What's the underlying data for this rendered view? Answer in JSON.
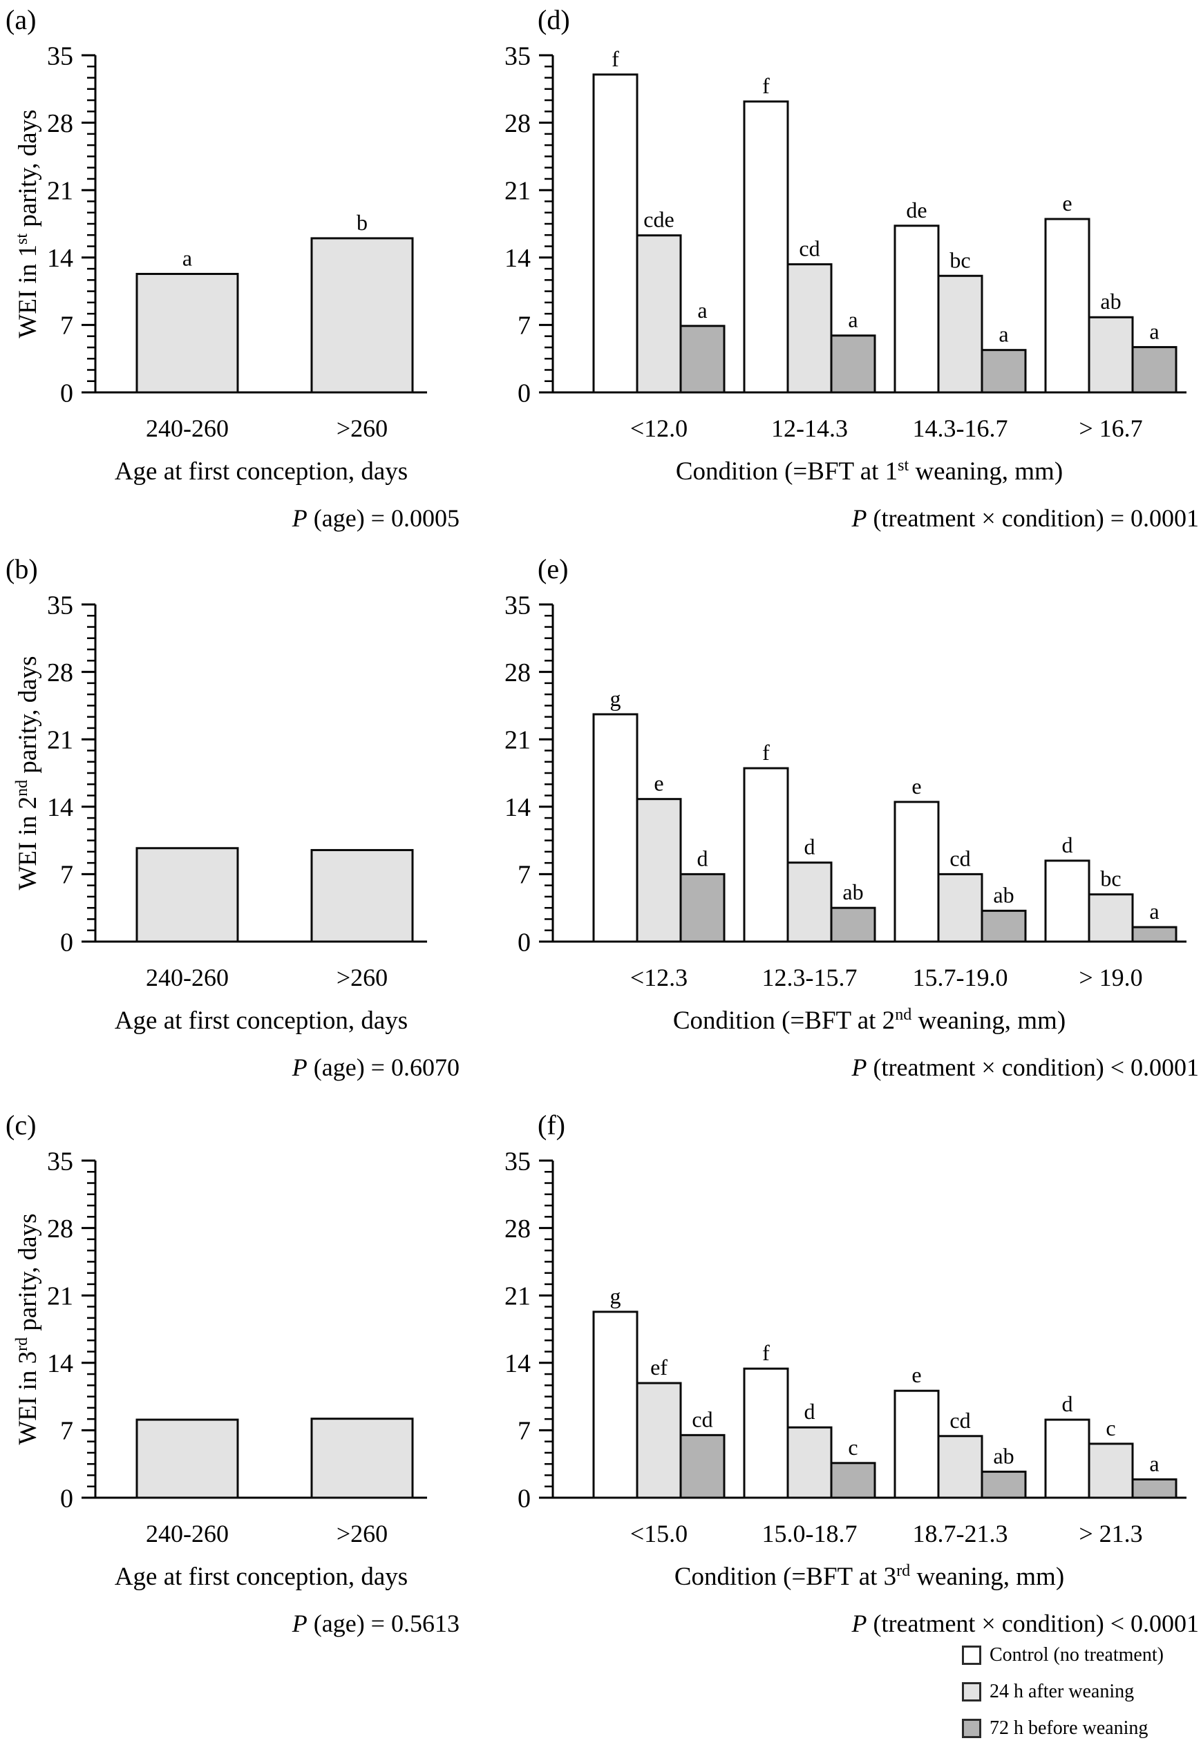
{
  "figure": {
    "background": "#ffffff",
    "axis_color": "#000000",
    "bar_stroke": "#0a0a0a"
  },
  "legend": {
    "items": [
      {
        "label": "Control (no treatment)",
        "color": "#ffffff"
      },
      {
        "label": "24 h after weaning",
        "color": "#e3e3e3"
      },
      {
        "label": "72 h before weaning",
        "color": "#b3b3b3"
      }
    ]
  },
  "panels": {
    "a": {
      "letter": "(a)",
      "ylabel_pre": "WEI in 1",
      "ylabel_sup": "st",
      "ylabel_post": " parity, days",
      "xlabel": "Age at first conception, days",
      "p_italic": "P",
      "p_rest": " (age) = 0.0005"
    },
    "b": {
      "letter": "(b)",
      "ylabel_pre": "WEI in 2",
      "ylabel_sup": "nd",
      "ylabel_post": " parity, days",
      "xlabel": "Age at first conception, days",
      "p_italic": "P",
      "p_rest": " (age) = 0.6070"
    },
    "c": {
      "letter": "(c)",
      "ylabel_pre": "WEI in 3",
      "ylabel_sup": "rd",
      "ylabel_post": " parity, days",
      "xlabel": "Age at first conception, days",
      "p_italic": "P",
      "p_rest": " (age) = 0.5613"
    },
    "d": {
      "letter": "(d)",
      "xlabel_pre": "Condition (=BFT at 1",
      "xlabel_sup": "st",
      "xlabel_post": " weaning, mm)",
      "p_italic": "P",
      "p_rest": " (treatment × condition) = 0.0001"
    },
    "e": {
      "letter": "(e)",
      "xlabel_pre": "Condition (=BFT at 2",
      "xlabel_sup": "nd",
      "xlabel_post": " weaning, mm)",
      "p_italic": "P",
      "p_rest": " (treatment × condition) < 0.0001"
    },
    "f": {
      "letter": "(f)",
      "xlabel_pre": "Condition (=BFT at 3",
      "xlabel_sup": "rd",
      "xlabel_post": " weaning, mm)",
      "p_italic": "P",
      "p_rest": " (treatment × condition) < 0.0001"
    }
  },
  "chart_data": [
    {
      "id": "a",
      "type": "bar",
      "title": "(a)",
      "categories": [
        "240-260",
        ">260"
      ],
      "series": [
        {
          "name": "Age at first conception",
          "color": "#e3e3e3",
          "values": [
            12.3,
            16.0
          ],
          "letters": [
            "a",
            "b"
          ]
        }
      ],
      "xlabel": "Age at first conception, days",
      "ylabel": "WEI in 1st parity, days",
      "ylim": [
        0,
        35
      ],
      "yticks": [
        0,
        7,
        14,
        21,
        28,
        35
      ],
      "grid": false,
      "annotation": "P (age) = 0.0005"
    },
    {
      "id": "b",
      "type": "bar",
      "title": "(b)",
      "categories": [
        "240-260",
        ">260"
      ],
      "series": [
        {
          "name": "Age at first conception",
          "color": "#e3e3e3",
          "values": [
            9.7,
            9.5
          ],
          "letters": [
            "",
            ""
          ]
        }
      ],
      "xlabel": "Age at first conception, days",
      "ylabel": "WEI in 2nd parity, days",
      "ylim": [
        0,
        35
      ],
      "yticks": [
        0,
        7,
        14,
        21,
        28,
        35
      ],
      "grid": false,
      "annotation": "P (age) = 0.6070"
    },
    {
      "id": "c",
      "type": "bar",
      "title": "(c)",
      "categories": [
        "240-260",
        ">260"
      ],
      "series": [
        {
          "name": "Age at first conception",
          "color": "#e3e3e3",
          "values": [
            8.1,
            8.2
          ],
          "letters": [
            "",
            ""
          ]
        }
      ],
      "xlabel": "Age at first conception, days",
      "ylabel": "WEI in 3rd parity, days",
      "ylim": [
        0,
        35
      ],
      "yticks": [
        0,
        7,
        14,
        21,
        28,
        35
      ],
      "grid": false,
      "annotation": "P (age) = 0.5613"
    },
    {
      "id": "d",
      "type": "bar",
      "title": "(d)",
      "categories": [
        "<12.0",
        "12-14.3",
        "14.3-16.7",
        "> 16.7"
      ],
      "series": [
        {
          "name": "Control (no treatment)",
          "color": "#ffffff",
          "values": [
            33.0,
            30.2,
            17.3,
            18.0
          ],
          "letters": [
            "f",
            "f",
            "de",
            "e"
          ]
        },
        {
          "name": "24 h after weaning",
          "color": "#e3e3e3",
          "values": [
            16.3,
            13.3,
            12.1,
            7.8
          ],
          "letters": [
            "cde",
            "cd",
            "bc",
            "ab"
          ]
        },
        {
          "name": "72 h before weaning",
          "color": "#b3b3b3",
          "values": [
            6.9,
            5.9,
            4.4,
            4.7
          ],
          "letters": [
            "a",
            "a",
            "a",
            "a"
          ]
        }
      ],
      "xlabel": "Condition (=BFT at 1st weaning, mm)",
      "ylabel": "",
      "ylim": [
        0,
        35
      ],
      "yticks": [
        0,
        7,
        14,
        21,
        28,
        35
      ],
      "grid": false,
      "annotation": "P (treatment × condition) = 0.0001"
    },
    {
      "id": "e",
      "type": "bar",
      "title": "(e)",
      "categories": [
        "<12.3",
        "12.3-15.7",
        "15.7-19.0",
        "> 19.0"
      ],
      "series": [
        {
          "name": "Control (no treatment)",
          "color": "#ffffff",
          "values": [
            23.6,
            18.0,
            14.5,
            8.4
          ],
          "letters": [
            "g",
            "f",
            "e",
            "d"
          ]
        },
        {
          "name": "24 h after weaning",
          "color": "#e3e3e3",
          "values": [
            14.8,
            8.2,
            7.0,
            4.9
          ],
          "letters": [
            "e",
            "d",
            "cd",
            "bc"
          ]
        },
        {
          "name": "72 h before weaning",
          "color": "#b3b3b3",
          "values": [
            7.0,
            3.5,
            3.2,
            1.5
          ],
          "letters": [
            "d",
            "ab",
            "ab",
            "a"
          ]
        }
      ],
      "xlabel": "Condition (=BFT at 2nd weaning, mm)",
      "ylabel": "",
      "ylim": [
        0,
        35
      ],
      "yticks": [
        0,
        7,
        14,
        21,
        28,
        35
      ],
      "grid": false,
      "annotation": "P (treatment × condition) < 0.0001"
    },
    {
      "id": "f",
      "type": "bar",
      "title": "(f)",
      "categories": [
        "<15.0",
        "15.0-18.7",
        "18.7-21.3",
        "> 21.3"
      ],
      "series": [
        {
          "name": "Control (no treatment)",
          "color": "#ffffff",
          "values": [
            19.3,
            13.4,
            11.1,
            8.1
          ],
          "letters": [
            "g",
            "f",
            "e",
            "d"
          ]
        },
        {
          "name": "24 h after weaning",
          "color": "#e3e3e3",
          "values": [
            11.9,
            7.3,
            6.4,
            5.6
          ],
          "letters": [
            "ef",
            "d",
            "cd",
            "c"
          ]
        },
        {
          "name": "72 h before weaning",
          "color": "#b3b3b3",
          "values": [
            6.5,
            3.6,
            2.7,
            1.9
          ],
          "letters": [
            "cd",
            "c",
            "ab",
            "a"
          ]
        }
      ],
      "xlabel": "Condition (=BFT at 3rd weaning, mm)",
      "ylabel": "",
      "ylim": [
        0,
        35
      ],
      "yticks": [
        0,
        7,
        14,
        21,
        28,
        35
      ],
      "grid": false,
      "annotation": "P (treatment × condition) < 0.0001"
    }
  ]
}
